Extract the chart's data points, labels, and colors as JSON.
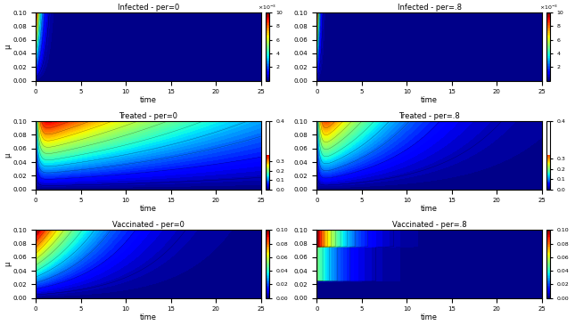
{
  "titles": [
    "Infected - per=0",
    "Infected - per=.8",
    "Treated - per=0",
    "Treated - per=.8",
    "Vaccinated - per=0",
    "Vaccinated - per=.8"
  ],
  "xlabel": "time",
  "t_range": [
    0,
    25
  ],
  "mu_range": [
    0,
    0.1
  ],
  "t_steps": 300,
  "mu_steps": 100,
  "colorbars": [
    {
      "vmin": 0,
      "vmax": 10,
      "ticks": [
        2,
        4,
        6,
        8,
        10
      ],
      "label": "x10^{-3}"
    },
    {
      "vmin": 0,
      "vmax": 10,
      "ticks": [
        2,
        4,
        6,
        8,
        10
      ],
      "label": "x10^{-3}"
    },
    {
      "vmin": 0,
      "vmax": 0.4,
      "ticks": [
        0.0,
        0.1,
        0.2,
        0.3,
        0.4
      ],
      "label": ""
    },
    {
      "vmin": 0,
      "vmax": 0.4,
      "ticks": [
        0.0,
        0.1,
        0.2,
        0.3,
        0.4
      ],
      "label": ""
    },
    {
      "vmin": 0,
      "vmax": 0.1,
      "ticks": [
        0.0,
        0.02,
        0.04,
        0.06,
        0.08,
        0.1
      ],
      "label": ""
    },
    {
      "vmin": 0,
      "vmax": 0.1,
      "ticks": [
        0.0,
        0.02,
        0.04,
        0.06,
        0.08,
        0.1
      ],
      "label": ""
    }
  ],
  "figsize": [
    6.45,
    3.65
  ],
  "dpi": 100
}
